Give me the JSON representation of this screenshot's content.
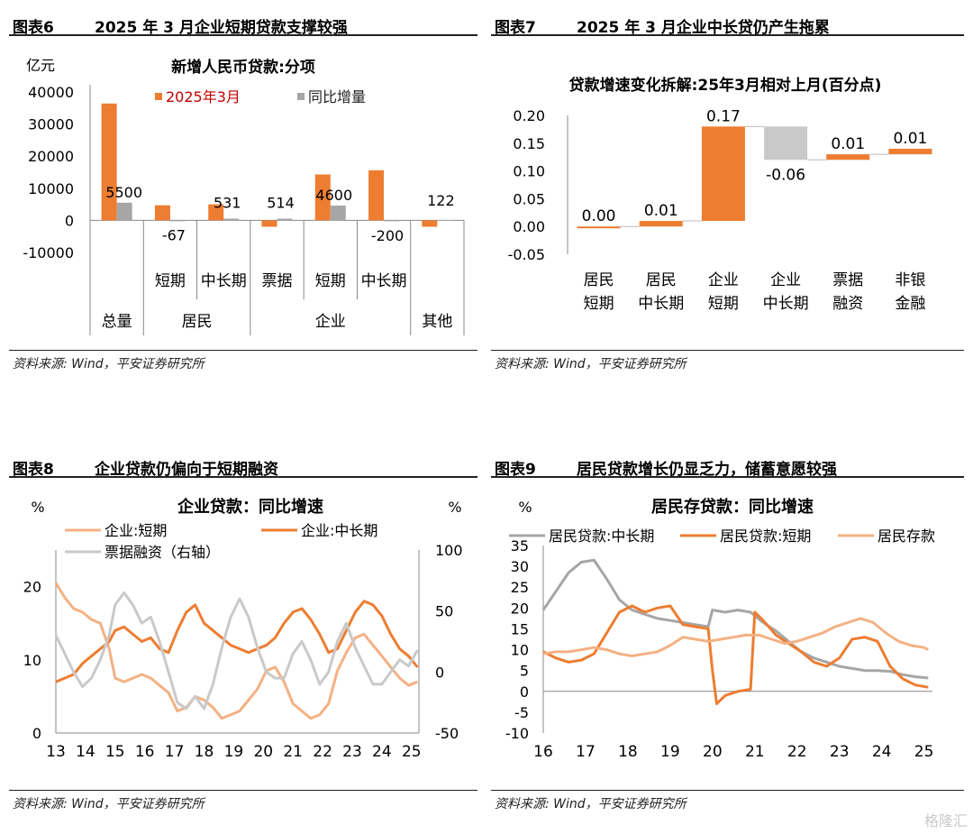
{
  "colors": {
    "orange": "#ed7d31",
    "gray": "#a6a6a6",
    "lightgray": "#c9c9c9",
    "lightorange": "#f4b183",
    "legendtext": "#c00000"
  },
  "panels": [
    {
      "fig_no": "图表6",
      "title": "2025 年 3 月企业短期贷款支撑较强",
      "source": "资料来源: Wind，平安证券研究所"
    },
    {
      "fig_no": "图表7",
      "title": "2025 年 3 月企业中长贷仍产生拖累",
      "source": "资料来源: Wind，平安证券研究所"
    },
    {
      "fig_no": "图表8",
      "title": "企业贷款仍偏向于短期融资",
      "source": "资料来源: Wind，平安证券研究所"
    },
    {
      "fig_no": "图表9",
      "title": "居民贷款增长仍显乏力，储蓄意愿较强",
      "source": "资料来源: Wind，平安证券研究所"
    }
  ],
  "watermark": "格隆汇",
  "chart_data": [
    {
      "type": "bar",
      "title": "新增人民币贷款:分项",
      "ylabel": "亿元",
      "ylim": [
        -10000,
        40000
      ],
      "yticks": [
        "40000",
        "30000",
        "20000",
        "10000",
        "0",
        "-10000"
      ],
      "categories": [
        "总量",
        "短期",
        "中长期",
        "票据",
        "短期",
        "中长期",
        "其他"
      ],
      "groups": [
        {
          "label": "总量",
          "span": 1
        },
        {
          "label": "居民",
          "span": 2
        },
        {
          "label": "企业",
          "span": 3
        },
        {
          "label": "其他",
          "span": 1
        }
      ],
      "series": [
        {
          "name": "2025年3月",
          "color": "#ed7d31",
          "values": [
            36400,
            4700,
            5000,
            -2000,
            14300,
            15600,
            -2000
          ]
        },
        {
          "name": "同比增量",
          "color": "#a6a6a6",
          "values": [
            5500,
            -67,
            531,
            514,
            4600,
            -200,
            122
          ]
        }
      ],
      "data_labels": [
        "5500",
        "-67",
        "531",
        "514",
        "4600",
        "-200",
        "122"
      ]
    },
    {
      "type": "bar",
      "title": "贷款增速变化拆解:25年3月相对上月(百分点)",
      "ylim": [
        -0.05,
        0.2
      ],
      "yticks": [
        "0.20",
        "0.15",
        "0.10",
        "0.05",
        "0.00",
        "-0.05"
      ],
      "categories": [
        "居民短期",
        "居民中长期",
        "企业短期",
        "企业中长期",
        "票据融资",
        "非银金融"
      ],
      "values": [
        0.0,
        0.01,
        0.17,
        -0.06,
        0.01,
        0.01
      ],
      "data_labels": [
        "0.00",
        "0.01",
        "0.17",
        "-0.06",
        "0.01",
        "0.01"
      ]
    },
    {
      "type": "line",
      "title": "企业贷款：同比增速",
      "ylabel": "%",
      "ylabel_right": "%",
      "ylim": [
        0,
        25
      ],
      "ylim_right": [
        -50,
        100
      ],
      "yticks": [
        "20",
        "10",
        "0"
      ],
      "yticks_right": [
        "100",
        "50",
        "0",
        "-50"
      ],
      "xticks": [
        "13",
        "14",
        "15",
        "16",
        "17",
        "18",
        "19",
        "20",
        "21",
        "22",
        "23",
        "24",
        "25"
      ],
      "xlim": [
        2013,
        2025.25
      ],
      "series": [
        {
          "name": "企业:短期",
          "color": "#f4b183",
          "axis": "left",
          "x": [
            2013.0,
            2013.3,
            2013.6,
            2013.9,
            2014.2,
            2014.5,
            2014.8,
            2015.0,
            2015.3,
            2015.6,
            2015.9,
            2016.2,
            2016.5,
            2016.8,
            2017.1,
            2017.4,
            2017.7,
            2018.0,
            2018.3,
            2018.6,
            2018.9,
            2019.2,
            2019.5,
            2019.8,
            2020.1,
            2020.4,
            2020.7,
            2021.0,
            2021.3,
            2021.6,
            2021.9,
            2022.2,
            2022.5,
            2022.8,
            2023.1,
            2023.4,
            2023.7,
            2024.0,
            2024.3,
            2024.6,
            2024.9,
            2025.2
          ],
          "y": [
            20.5,
            18.5,
            17.0,
            16.5,
            15.5,
            15.0,
            11.5,
            7.5,
            7.0,
            7.5,
            8.0,
            7.5,
            6.5,
            5.5,
            3.0,
            3.5,
            5.0,
            4.5,
            3.5,
            2.0,
            2.5,
            3.0,
            4.5,
            6.0,
            8.5,
            9.0,
            7.0,
            4.0,
            3.0,
            2.0,
            2.5,
            4.0,
            8.5,
            11.0,
            13.0,
            13.5,
            12.0,
            10.5,
            9.0,
            7.5,
            6.5,
            7.0
          ]
        },
        {
          "name": "企业:中长期",
          "color": "#ed7d31",
          "axis": "left",
          "x": [
            2013.0,
            2013.3,
            2013.6,
            2013.9,
            2014.2,
            2014.5,
            2014.8,
            2015.0,
            2015.3,
            2015.6,
            2015.9,
            2016.2,
            2016.5,
            2016.8,
            2017.1,
            2017.4,
            2017.7,
            2018.0,
            2018.3,
            2018.6,
            2018.9,
            2019.2,
            2019.5,
            2019.8,
            2020.1,
            2020.4,
            2020.7,
            2021.0,
            2021.3,
            2021.6,
            2021.9,
            2022.2,
            2022.5,
            2022.8,
            2023.1,
            2023.4,
            2023.7,
            2024.0,
            2024.3,
            2024.6,
            2024.9,
            2025.2
          ],
          "y": [
            7.0,
            7.5,
            8.0,
            9.5,
            10.5,
            11.5,
            12.5,
            14.0,
            14.5,
            13.5,
            12.5,
            13.0,
            11.5,
            11.0,
            14.0,
            16.5,
            17.5,
            15.0,
            14.0,
            13.0,
            12.0,
            11.5,
            11.0,
            11.5,
            12.0,
            13.0,
            15.0,
            16.5,
            17.0,
            15.5,
            13.5,
            11.0,
            11.5,
            14.0,
            16.5,
            18.0,
            17.5,
            16.0,
            13.5,
            11.5,
            10.5,
            9.0
          ]
        },
        {
          "name": "票据融资（右轴）",
          "color": "#c9c9c9",
          "axis": "right",
          "x": [
            2013.0,
            2013.3,
            2013.6,
            2013.9,
            2014.2,
            2014.5,
            2014.8,
            2015.0,
            2015.3,
            2015.6,
            2015.9,
            2016.2,
            2016.5,
            2016.8,
            2017.1,
            2017.4,
            2017.7,
            2018.0,
            2018.3,
            2018.6,
            2018.9,
            2019.2,
            2019.5,
            2019.8,
            2020.1,
            2020.4,
            2020.7,
            2021.0,
            2021.3,
            2021.6,
            2021.9,
            2022.2,
            2022.5,
            2022.8,
            2023.1,
            2023.4,
            2023.7,
            2024.0,
            2024.3,
            2024.6,
            2024.9,
            2025.2
          ],
          "y": [
            30,
            15,
            0,
            -12,
            -5,
            10,
            30,
            55,
            65,
            55,
            40,
            45,
            25,
            0,
            -25,
            -30,
            -20,
            -30,
            -10,
            20,
            45,
            60,
            45,
            20,
            0,
            -5,
            -5,
            15,
            25,
            10,
            -10,
            0,
            25,
            40,
            20,
            5,
            -10,
            -10,
            0,
            10,
            5,
            18
          ]
        }
      ]
    },
    {
      "type": "line",
      "title": "居民存贷款：同比增速",
      "ylabel": "%",
      "ylim": [
        -10,
        35
      ],
      "yticks": [
        "35",
        "30",
        "25",
        "20",
        "15",
        "10",
        "5",
        "0",
        "-5",
        "-10"
      ],
      "xticks": [
        "16",
        "17",
        "18",
        "19",
        "20",
        "21",
        "22",
        "23",
        "24",
        "25"
      ],
      "xlim": [
        2016,
        2025.2
      ],
      "series": [
        {
          "name": "居民贷款:中长期",
          "color": "#a6a6a6",
          "x": [
            2016.0,
            2016.3,
            2016.6,
            2016.9,
            2017.2,
            2017.5,
            2017.8,
            2018.1,
            2018.4,
            2018.7,
            2019.0,
            2019.3,
            2019.6,
            2019.9,
            2020.0,
            2020.3,
            2020.6,
            2020.9,
            2021.2,
            2021.5,
            2021.8,
            2022.1,
            2022.4,
            2022.7,
            2023.0,
            2023.3,
            2023.6,
            2023.9,
            2024.2,
            2024.5,
            2024.8,
            2025.1
          ],
          "y": [
            19.5,
            24.0,
            28.5,
            31.0,
            31.5,
            27.0,
            22.0,
            19.5,
            18.5,
            17.5,
            17.0,
            16.5,
            16.0,
            15.5,
            19.5,
            19.0,
            19.5,
            19.0,
            16.5,
            14.5,
            12.0,
            9.5,
            8.0,
            7.0,
            6.0,
            5.5,
            5.0,
            5.0,
            4.8,
            4.0,
            3.5,
            3.2
          ]
        },
        {
          "name": "居民贷款:短期",
          "color": "#ed7d31",
          "x": [
            2016.0,
            2016.3,
            2016.6,
            2016.9,
            2017.2,
            2017.5,
            2017.8,
            2018.1,
            2018.4,
            2018.7,
            2019.0,
            2019.3,
            2019.6,
            2019.9,
            2020.0,
            2020.1,
            2020.3,
            2020.6,
            2020.9,
            2021.0,
            2021.2,
            2021.5,
            2021.8,
            2022.1,
            2022.4,
            2022.7,
            2023.0,
            2023.3,
            2023.6,
            2023.9,
            2024.2,
            2024.5,
            2024.8,
            2025.1
          ],
          "y": [
            9.5,
            8.0,
            7.0,
            7.5,
            9.0,
            14.0,
            19.0,
            20.5,
            19.0,
            20.0,
            20.5,
            16.0,
            15.5,
            15.0,
            5.0,
            -3.0,
            -1.0,
            0.0,
            0.5,
            19.0,
            17.0,
            13.5,
            11.5,
            9.5,
            7.0,
            6.0,
            8.0,
            12.5,
            13.0,
            12.0,
            6.0,
            3.0,
            1.5,
            1.0
          ]
        },
        {
          "name": "居民存款",
          "color": "#f4b183",
          "x": [
            2016.0,
            2016.3,
            2016.6,
            2016.9,
            2017.2,
            2017.5,
            2017.8,
            2018.1,
            2018.4,
            2018.7,
            2019.0,
            2019.3,
            2019.6,
            2019.9,
            2020.2,
            2020.5,
            2020.8,
            2021.1,
            2021.4,
            2021.7,
            2022.0,
            2022.3,
            2022.6,
            2022.9,
            2023.2,
            2023.5,
            2023.8,
            2024.1,
            2024.4,
            2024.7,
            2025.0,
            2025.1
          ],
          "y": [
            9.0,
            9.5,
            9.5,
            10.0,
            10.5,
            10.0,
            9.0,
            8.5,
            9.0,
            9.5,
            11.0,
            13.0,
            12.5,
            12.0,
            12.5,
            13.0,
            13.5,
            13.5,
            12.5,
            11.5,
            12.0,
            13.0,
            14.0,
            15.5,
            16.5,
            17.5,
            16.5,
            14.0,
            12.0,
            11.0,
            10.5,
            10.0
          ]
        }
      ]
    }
  ]
}
